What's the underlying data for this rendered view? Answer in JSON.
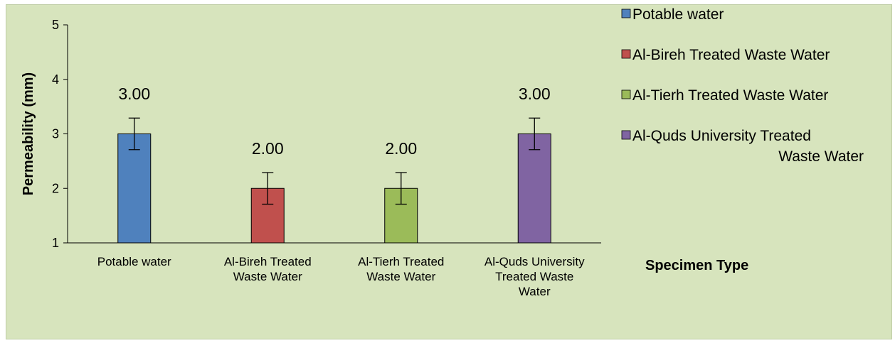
{
  "chart_data": {
    "type": "bar",
    "categories": [
      [
        "Potable water"
      ],
      [
        "Al-Bireh Treated",
        "Waste Water"
      ],
      [
        "Al-Tierh Treated",
        "Waste Water"
      ],
      [
        "Al-Quds University",
        "Treated Waste",
        "Water"
      ]
    ],
    "values": [
      3.0,
      2.0,
      2.0,
      3.0
    ],
    "data_labels": [
      "3.00",
      "2.00",
      "2.00",
      "3.00"
    ],
    "error_bars": [
      0.29,
      0.29,
      0.29,
      0.29
    ],
    "colors": [
      "#4f81bd",
      "#c0504d",
      "#9bbb59",
      "#8064a2"
    ],
    "ylabel": "Permeability (mm)",
    "xlabel": "Specimen Type",
    "ylim": [
      1,
      5
    ],
    "yticks": [
      "1",
      "2",
      "3",
      "4",
      "5"
    ],
    "legend": {
      "position": "right",
      "entries": [
        [
          "Potable water"
        ],
        [
          "Al-Bireh Treated Waste Water"
        ],
        [
          "Al-Tierh Treated Waste Water"
        ],
        [
          "Al-Quds University Treated",
          "Waste Water"
        ]
      ]
    },
    "background": "#d7e4bd"
  }
}
